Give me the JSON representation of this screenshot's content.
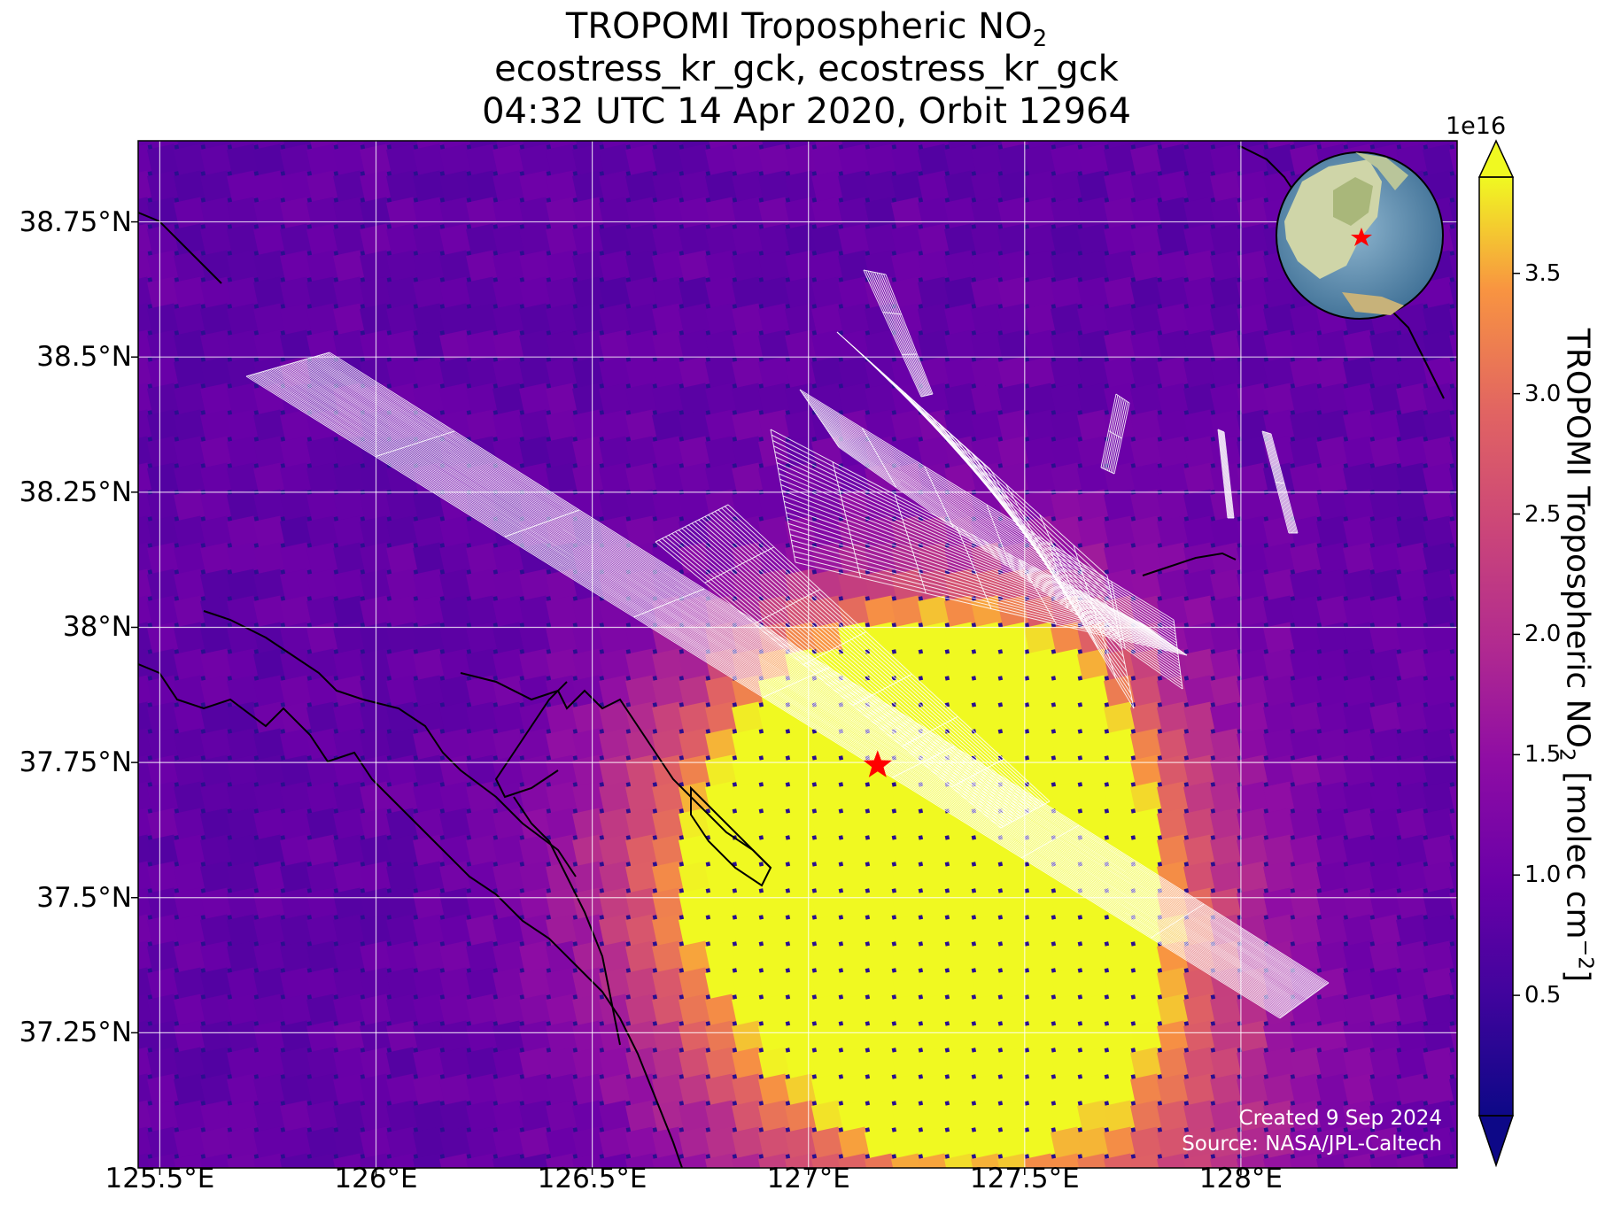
{
  "title": {
    "line1_prefix": "TROPOMI Tropospheric NO",
    "line1_sub": "2",
    "line2": "ecostress_kr_gck, ecostress_kr_gck",
    "line3": "04:32 UTC 14 Apr 2020, Orbit 12964"
  },
  "map": {
    "extent": {
      "lon_min": 125.45,
      "lon_max": 128.5,
      "lat_min": 37.0,
      "lat_max": 38.9
    },
    "lat_ticks": [
      {
        "value": 38.75,
        "label": "38.75°N"
      },
      {
        "value": 38.5,
        "label": "38.5°N"
      },
      {
        "value": 38.25,
        "label": "38.25°N"
      },
      {
        "value": 38.0,
        "label": "38°N"
      },
      {
        "value": 37.75,
        "label": "37.75°N"
      },
      {
        "value": 37.5,
        "label": "37.5°N"
      },
      {
        "value": 37.25,
        "label": "37.25°N"
      }
    ],
    "lon_ticks": [
      {
        "value": 125.5,
        "label": "125.5°E"
      },
      {
        "value": 126.0,
        "label": "126°E"
      },
      {
        "value": 126.5,
        "label": "126.5°E"
      },
      {
        "value": 127.0,
        "label": "127°E"
      },
      {
        "value": 127.5,
        "label": "127.5°E"
      },
      {
        "value": 128.0,
        "label": "128°E"
      }
    ],
    "target_marker": {
      "lon": 127.16,
      "lat": 37.745,
      "color": "#ff0000"
    },
    "background_color": "#2a0f8e"
  },
  "colorbar": {
    "exponent_label": "1e16",
    "min": 0.0,
    "max": 3.9,
    "ticks": [
      {
        "value": 0.5,
        "label": "0.5"
      },
      {
        "value": 1.0,
        "label": "1.0"
      },
      {
        "value": 1.5,
        "label": "1.5"
      },
      {
        "value": 2.0,
        "label": "2.0"
      },
      {
        "value": 2.5,
        "label": "2.5"
      },
      {
        "value": 3.0,
        "label": "3.0"
      },
      {
        "value": 3.5,
        "label": "3.5"
      }
    ],
    "label_prefix": "TROPOMI Tropospheric NO",
    "label_sub": "2",
    "label_mid": " [molec cm",
    "label_sup": "−2",
    "label_suffix": "]",
    "colormap": "plasma"
  },
  "credits": {
    "line1": "Created 9 Sep 2024",
    "line2": "Source: NASA/JPL-Caltech"
  }
}
